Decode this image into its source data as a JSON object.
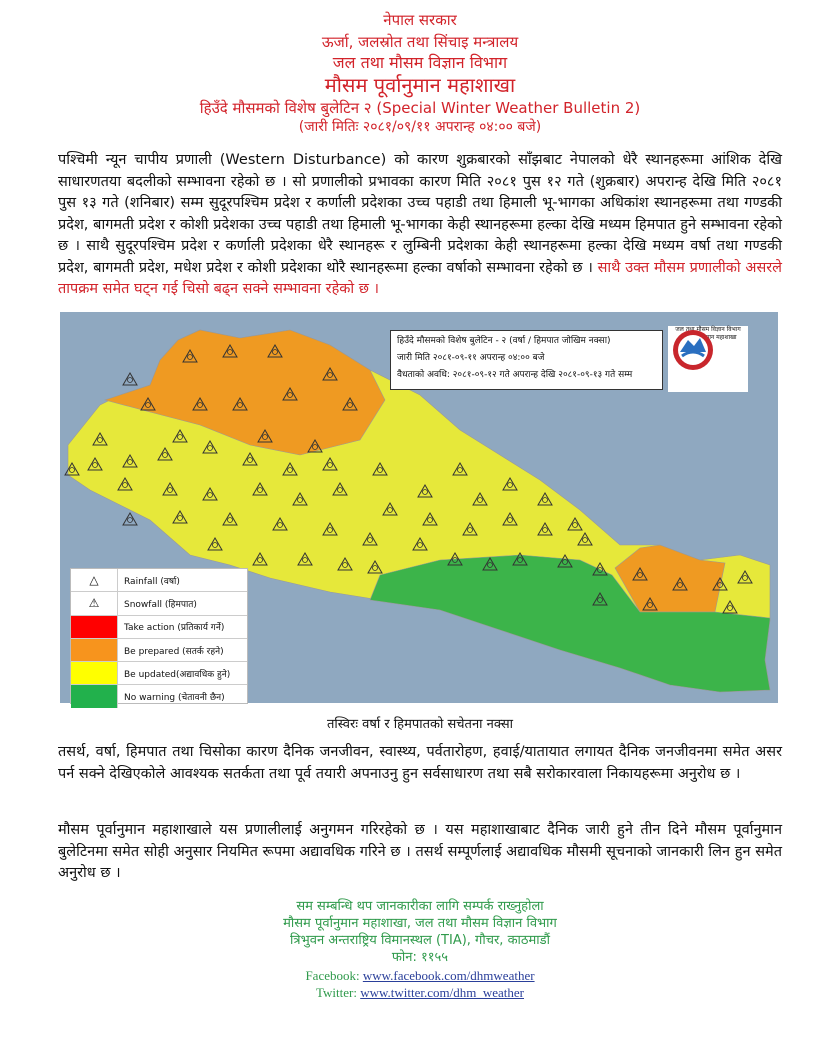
{
  "header": {
    "line1": "नेपाल सरकार",
    "line2": "ऊर्जा, जलस्रोत तथा सिंचाइ मन्त्रालय",
    "line3": "जल तथा मौसम विज्ञान विभाग",
    "line4": "मौसम पूर्वानुमान महाशाखा",
    "line5": "हिउँदे मौसमको विशेष बुलेटिन २ (Special Winter Weather Bulletin 2)",
    "line6": "(जारी मितिः २०८१/०९/११ अपरान्ह ०४:०० बजे)"
  },
  "paragraph1": {
    "text": "पश्चिमी न्यून चापीय प्रणाली (Western Disturbance) को कारण शुक्रबारको साँझबाट नेपालको धेरै स्थानहरूमा आंशिक देखि साधारणतया बदलीको सम्भावना रहेको छ । सो प्रणालीको प्रभावका कारण मिति २०८१ पुस १२ गते (शुक्रबार) अपरान्ह देखि मिति २०८१ पुस १३ गते (शनिबार) सम्म सुदूरपश्चिम प्रदेश र कर्णाली प्रदेशका उच्च पहाडी तथा हिमाली भू-भागका अधिकांश स्थानहरूमा तथा गण्डकी प्रदेश, बागमती प्रदेश र कोशी प्रदेशका उच्च पहाडी तथा हिमाली भू-भागका केही स्थानहरूमा हल्का देखि मध्यम हिमपात हुने सम्भावना रहेको छ । साथै सुदूरपश्चिम प्रदेश र कर्णाली प्रदेशका धेरै स्थानहरू र लुम्बिनी प्रदेशका केही स्थानहरूमा हल्का देखि मध्यम वर्षा तथा गण्डकी प्रदेश, बागमती प्रदेश, मधेश प्रदेश र कोशी प्रदेशका थोरै स्थानहरूमा हल्का वर्षाको सम्भावना रहेको छ । ",
    "highlight": "साथै उक्त मौसम प्रणालीको असरले तापक्रम समेत घट्न गई चिसो बढ्न सक्ने सम्भावना रहेको छ ।"
  },
  "map": {
    "info_line1": "हिउँदे मौसमको विशेष बुलेटिन - २ (वर्षा / हिमपात जोखिम नक्सा)",
    "info_line2": "जारी मिति २०८१-०९-११ अपरान्ह ०४:०० बजे",
    "info_line3": "वैधताको अवधि: २०८१-०९-१२ गते अपरान्ह देखि २०८१-०९-१३ गते सम्म",
    "logo_line1": "जल तथा मौसम विज्ञान विभाग",
    "logo_line2": "मौसम पूर्वानुमान महाशाखा",
    "legend": [
      {
        "label": "Rainfall (वर्षा)",
        "icon": "rainfall-icon"
      },
      {
        "label": "Snowfall (हिमपात)",
        "icon": "snowfall-icon"
      },
      {
        "label": "Take action (प्रतिकार्य गर्ने)",
        "color": "#ff0000"
      },
      {
        "label": "Be prepared (सतर्क रहने)",
        "color": "#f7941d"
      },
      {
        "label": "Be updated(अद्यावधिक हुने)",
        "color": "#ffff00"
      },
      {
        "label": "No warning (चेतावनी छैन)",
        "color": "#22b14c"
      }
    ],
    "colors": {
      "sea": "#8fa8c0",
      "orange": "#ef9a22",
      "yellow": "#e6e83a",
      "green": "#3cb44a"
    }
  },
  "caption": "तस्विरः वर्षा र हिमपातको सचेतना नक्सा",
  "paragraph2": "तसर्थ, वर्षा, हिमपात तथा चिसोका कारण दैनिक जनजीवन, स्वास्थ्य, पर्वतारोहण, हवाई/यातायात लगायत दैनिक जनजीवनमा समेत असर पर्न सक्ने देखिएकोले आवश्यक सतर्कता तथा पूर्व तयारी अपनाउनु हुन सर्वसाधारण तथा सबै सरोकारवाला निकायहरूमा अनुरोध छ ।",
  "paragraph3": "मौसम पूर्वानुमान महाशाखाले यस प्रणालीलाई अनुगमन गरिरहेको छ । यस महाशाखाबाट दैनिक जारी हुने तीन दिने मौसम पूर्वानुमान बुलेटिनमा समेत सोही अनुसार नियमित रूपमा अद्यावधिक गरिने छ । तसर्थ सम्पूर्णलाई अद्यावधिक मौसमी सूचनाको जानकारी लिन हुन समेत अनुरोध छ ।",
  "footer": {
    "line1": "सम सम्बन्धि थप जानकारीका लागि सम्पर्क राख्नुहोला",
    "line2": "मौसम पूर्वानुमान महाशाखा, जल तथा मौसम विज्ञान विभाग",
    "line3": "त्रिभुवन अन्तराष्ट्रिय विमानस्थल (TIA), गौचर, काठमाडौं",
    "line4": "फोन: ११५५",
    "facebook_label": "Facebook: ",
    "facebook_link": "www.facebook.com/dhmweather",
    "twitter_label": "Twitter: ",
    "twitter_link": "www.twitter.com/dhm_weather"
  }
}
